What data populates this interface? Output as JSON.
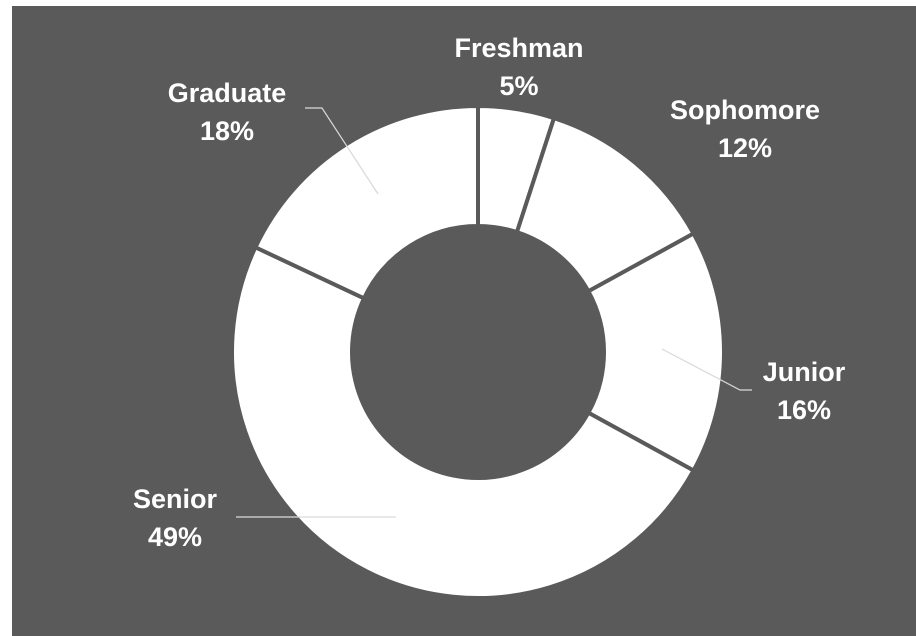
{
  "chart_data": {
    "type": "pie",
    "variant": "donut",
    "slices": [
      {
        "label": "Freshman",
        "value": 5,
        "display": "5%"
      },
      {
        "label": "Sophomore",
        "value": 12,
        "display": "12%"
      },
      {
        "label": "Junior",
        "value": 16,
        "display": "16%"
      },
      {
        "label": "Senior",
        "value": 49,
        "display": "49%"
      },
      {
        "label": "Graduate",
        "value": 18,
        "display": "18%"
      }
    ],
    "start_angle_deg": 0,
    "direction": "clockwise",
    "legend": "none",
    "colors": {
      "background": "#5a5a5a",
      "slice_fill": "#ffffff",
      "label_text": "#ffffff",
      "leader_line": "#d9d9d9"
    }
  }
}
